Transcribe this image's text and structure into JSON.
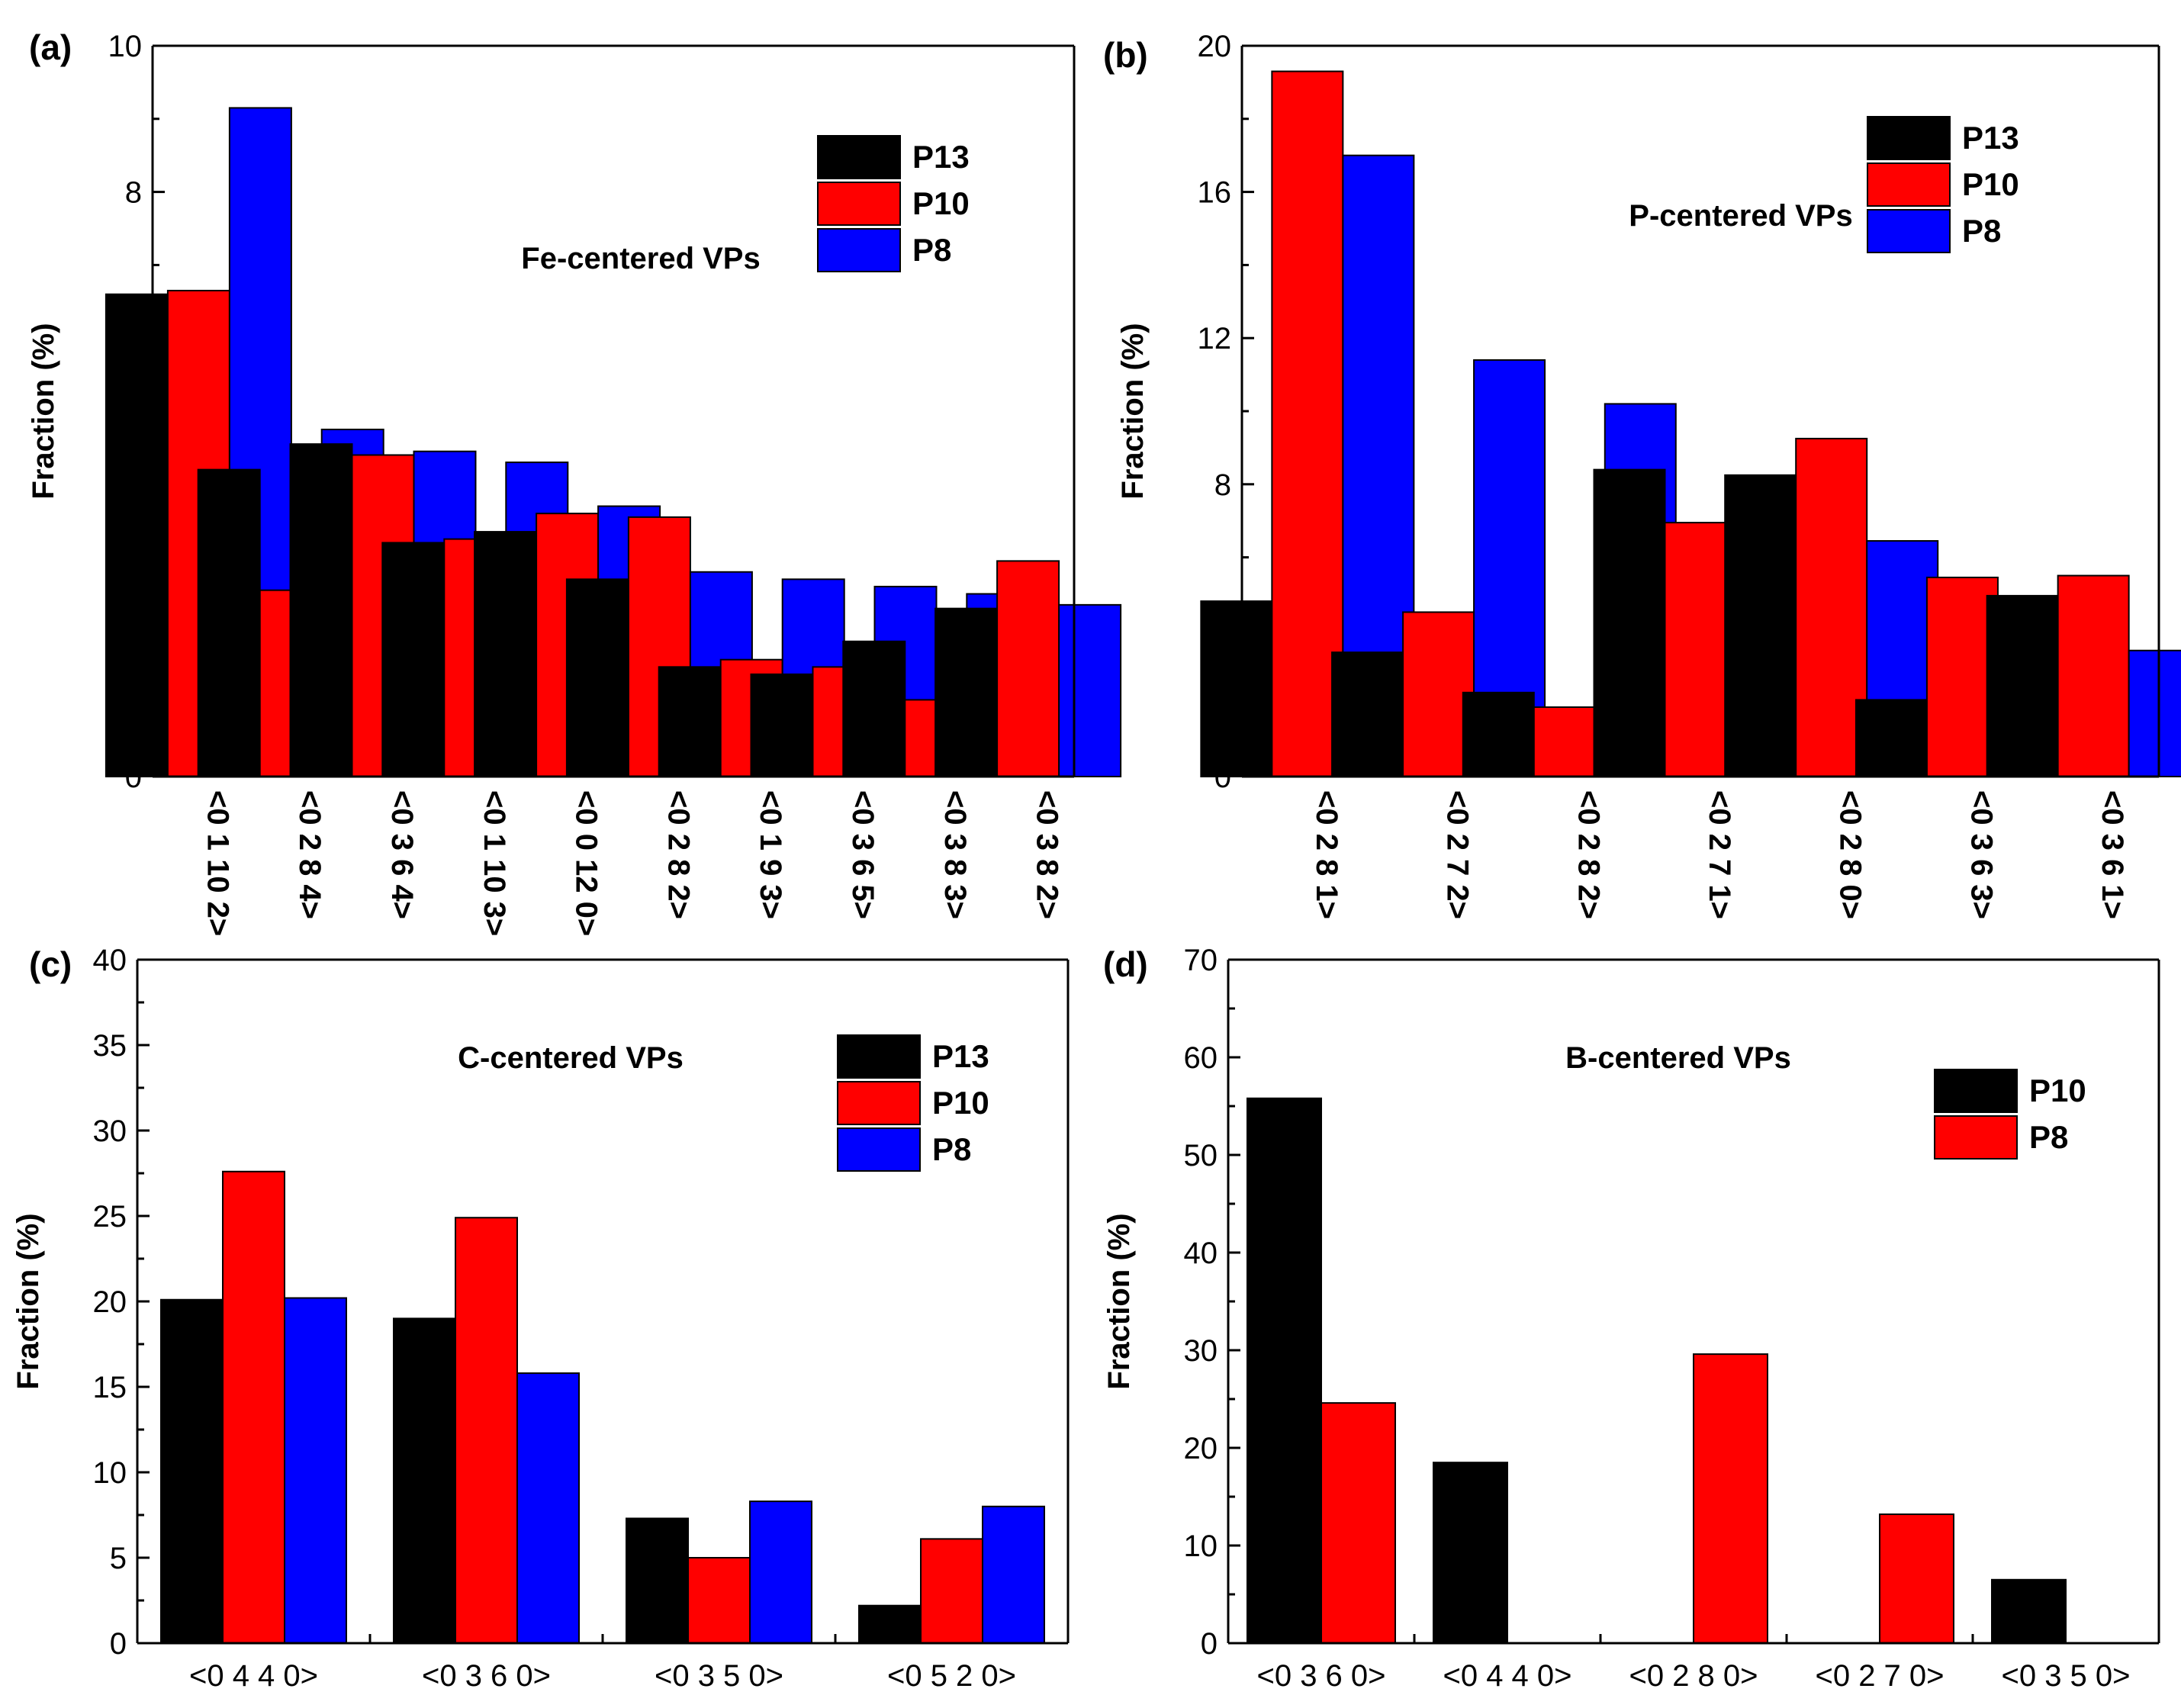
{
  "chart_data": [
    {
      "panel": "(a)",
      "type": "bar",
      "annotation": "Fe-centered VPs",
      "ylabel": "Fraction (%)",
      "xlabel": "",
      "ylim": [
        0,
        10
      ],
      "yticks": [
        0,
        2,
        4,
        6,
        8,
        10
      ],
      "categories": [
        "<0 1 10 2>",
        "<0 2 8 4>",
        "<0 3 6 4>",
        "<0 1 10 3>",
        "<0 0 12 0>",
        "<0 2 8 2>",
        "<0 1 9 3>",
        "<0 3 6 5>",
        "<0 3 8 3>",
        "<0 3 8 2>"
      ],
      "category_label_orientation": "vertical",
      "legend_position": "top-right",
      "series": [
        {
          "name": "P13",
          "color": "#000000",
          "values": [
            6.6,
            4.2,
            4.55,
            3.2,
            3.35,
            2.7,
            1.5,
            1.4,
            1.85,
            2.3
          ]
        },
        {
          "name": "P10",
          "color": "#ff0000",
          "values": [
            6.65,
            2.55,
            4.4,
            3.25,
            3.6,
            3.55,
            1.6,
            1.5,
            1.05,
            2.95
          ]
        },
        {
          "name": "P8",
          "color": "#0000ff",
          "values": [
            9.15,
            4.75,
            4.45,
            4.3,
            3.7,
            2.8,
            2.7,
            2.6,
            2.5,
            2.35
          ]
        }
      ]
    },
    {
      "panel": "(b)",
      "type": "bar",
      "annotation": "P-centered VPs",
      "ylabel": "Fraction (%)",
      "xlabel": "",
      "ylim": [
        0,
        20
      ],
      "yticks": [
        0,
        4,
        8,
        12,
        16,
        20
      ],
      "categories": [
        "<0 2 8 1>",
        "<0 2 7 2>",
        "<0 2 8 2>",
        "<0 2 7 1>",
        "<0 2 8 0>",
        "<0 3 6 3>",
        "<0 3 6 1>"
      ],
      "category_label_orientation": "vertical",
      "legend_position": "top-right",
      "series": [
        {
          "name": "P13",
          "color": "#000000",
          "values": [
            4.8,
            3.4,
            2.3,
            8.4,
            8.25,
            2.1,
            4.95
          ]
        },
        {
          "name": "P10",
          "color": "#ff0000",
          "values": [
            19.3,
            4.5,
            1.9,
            6.95,
            9.25,
            5.45,
            5.5
          ]
        },
        {
          "name": "P8",
          "color": "#0000ff",
          "values": [
            17.0,
            11.4,
            10.2,
            7.95,
            6.45,
            4.9,
            3.45
          ]
        }
      ]
    },
    {
      "panel": "(c)",
      "type": "bar",
      "annotation": "C-centered VPs",
      "ylabel": "Fraction (%)",
      "xlabel": "",
      "ylim": [
        0,
        40
      ],
      "yticks": [
        0,
        5,
        10,
        15,
        20,
        25,
        30,
        35,
        40
      ],
      "categories": [
        "<0 4 4 0>",
        "<0 3 6 0>",
        "<0 3 5 0>",
        "<0 5 2 0>"
      ],
      "category_label_orientation": "horizontal",
      "legend_position": "top-right",
      "series": [
        {
          "name": "P13",
          "color": "#000000",
          "values": [
            20.1,
            19.0,
            7.3,
            2.2
          ]
        },
        {
          "name": "P10",
          "color": "#ff0000",
          "values": [
            27.6,
            24.9,
            5.0,
            6.1
          ]
        },
        {
          "name": "P8",
          "color": "#0000ff",
          "values": [
            20.2,
            15.8,
            8.3,
            8.0
          ]
        }
      ]
    },
    {
      "panel": "(d)",
      "type": "bar",
      "annotation": "B-centered VPs",
      "ylabel": "Fraction (%)",
      "xlabel": "",
      "ylim": [
        0,
        70
      ],
      "yticks": [
        0,
        10,
        20,
        30,
        40,
        50,
        60,
        70
      ],
      "categories": [
        "<0 3 6 0>",
        "<0 4 4 0>",
        "<0 2 8 0>",
        "<0 2 7 0>",
        "<0 3 5 0>"
      ],
      "category_label_orientation": "horizontal",
      "legend_position": "top-right",
      "series": [
        {
          "name": "P10",
          "color": "#000000",
          "values": [
            55.8,
            18.5,
            0,
            0,
            6.5
          ]
        },
        {
          "name": "P8",
          "color": "#ff0000",
          "values": [
            24.6,
            0,
            29.6,
            13.2,
            0
          ]
        }
      ]
    }
  ]
}
